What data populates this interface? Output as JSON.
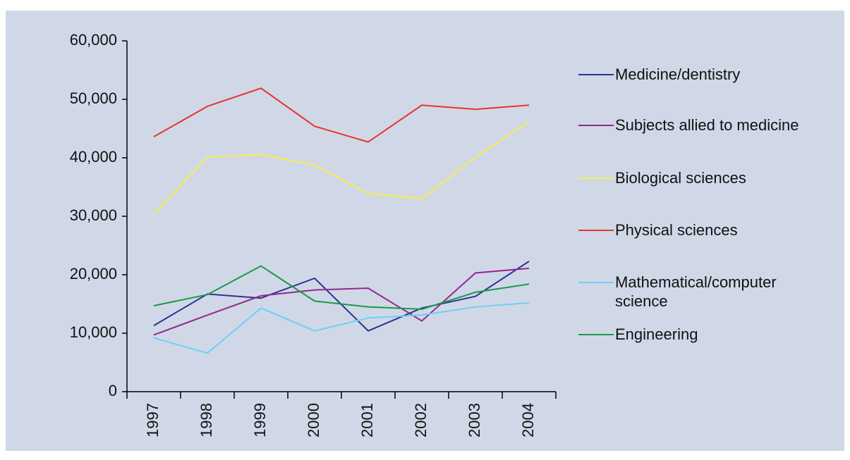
{
  "chart_data": {
    "type": "line",
    "categories": [
      "1997",
      "1998",
      "1999",
      "2000",
      "2001",
      "2002",
      "2003",
      "2004"
    ],
    "series": [
      {
        "name": "Medicine/dentistry",
        "color": "#2e3192",
        "values": [
          11300,
          16700,
          16000,
          19400,
          10400,
          14300,
          16300,
          22300
        ]
      },
      {
        "name": "Subjects allied to medicine",
        "color": "#93278f",
        "values": [
          9700,
          13100,
          16400,
          17400,
          17700,
          12100,
          20300,
          21100
        ]
      },
      {
        "name": "Biological sciences",
        "color": "#f5ef4a",
        "values": [
          30400,
          40100,
          40600,
          38700,
          33900,
          33000,
          40100,
          46200
        ]
      },
      {
        "name": "Physical sciences",
        "color": "#e8332a",
        "values": [
          43600,
          48800,
          51900,
          45400,
          42700,
          49000,
          48300,
          49000
        ]
      },
      {
        "name": "Mathematical/computer science",
        "color": "#6dcff6",
        "values": [
          9200,
          6600,
          14300,
          10400,
          12600,
          13100,
          14500,
          15200
        ]
      },
      {
        "name": "Engineering",
        "color": "#1a9a48",
        "values": [
          14700,
          16600,
          21500,
          15500,
          14500,
          14100,
          17000,
          18400
        ]
      }
    ],
    "ylim": [
      0,
      60000
    ],
    "yticks": [
      0,
      {
        "value": 10000,
        "label": "10,000"
      },
      {
        "value": 20000,
        "label": "20,000"
      },
      {
        "value": 30000,
        "label": "30,000"
      },
      {
        "value": 40000,
        "label": "40,000"
      },
      {
        "value": 50000,
        "label": "50,000"
      },
      {
        "value": 60000,
        "label": "60,000"
      }
    ],
    "legend": "right"
  }
}
